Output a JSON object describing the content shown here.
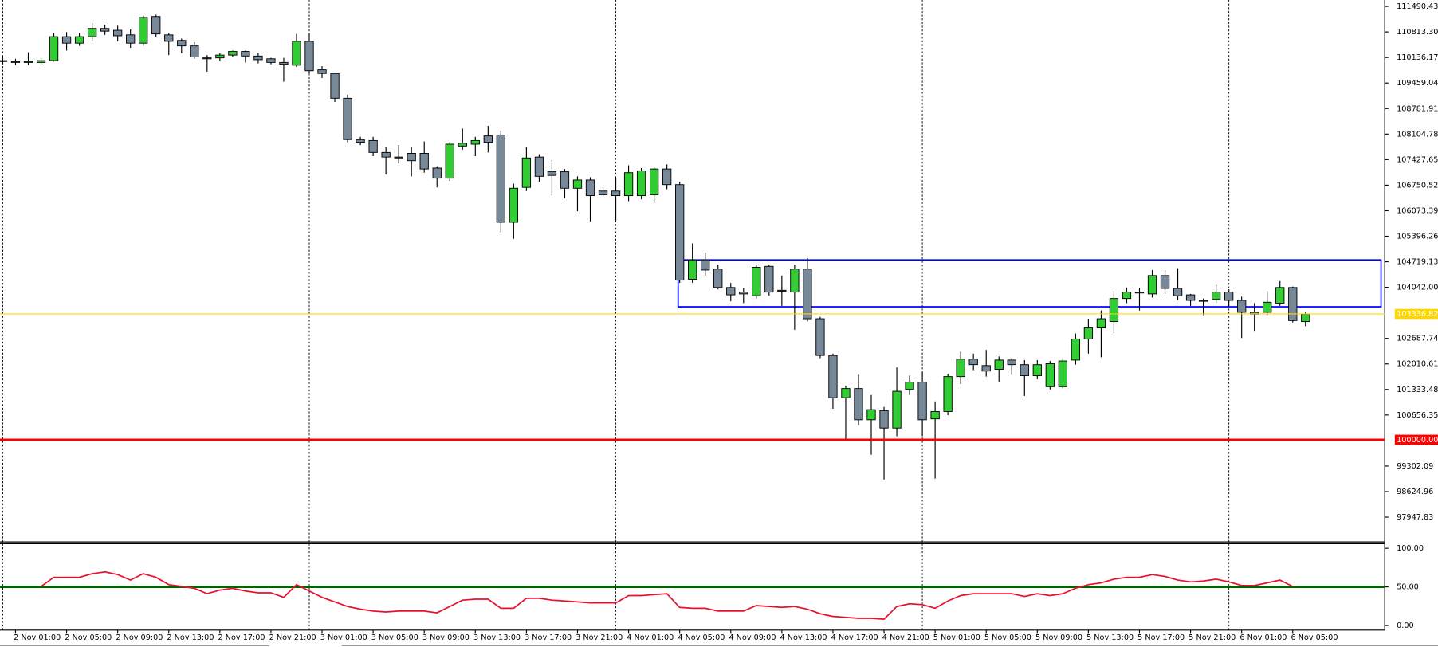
{
  "chart_data": [
    {
      "type": "candlestick",
      "categories": [
        null,
        "2 Nov 01:00",
        null,
        null,
        null,
        "2 Nov 05:00",
        null,
        null,
        null,
        "2 Nov 09:00",
        null,
        null,
        null,
        "2 Nov 13:00",
        null,
        null,
        null,
        "2 Nov 17:00",
        null,
        null,
        null,
        "2 Nov 21:00",
        null,
        null,
        null,
        "3 Nov 01:00",
        null,
        null,
        null,
        "3 Nov 05:00",
        null,
        null,
        null,
        "3 Nov 09:00",
        null,
        null,
        null,
        "3 Nov 13:00",
        null,
        null,
        null,
        "3 Nov 17:00",
        null,
        null,
        null,
        "3 Nov 21:00",
        null,
        null,
        null,
        "4 Nov 01:00",
        null,
        null,
        null,
        "4 Nov 05:00",
        null,
        null,
        null,
        "4 Nov 09:00",
        null,
        null,
        null,
        "4 Nov 13:00",
        null,
        null,
        null,
        "4 Nov 17:00",
        null,
        null,
        null,
        "4 Nov 21:00",
        null,
        null,
        null,
        "5 Nov 01:00",
        null,
        null,
        null,
        "5 Nov 05:00",
        null,
        null,
        null,
        "5 Nov 09:00",
        null,
        null,
        null,
        "5 Nov 13:00",
        null,
        null,
        null,
        "5 Nov 17:00",
        null,
        null,
        null,
        "5 Nov 21:00",
        null,
        null,
        null,
        "6 Nov 01:00",
        null,
        null,
        null,
        "6 Nov 05:00",
        null
      ],
      "open": [
        110053,
        110029,
        110005,
        110005,
        110053,
        110687,
        110516,
        110687,
        110906,
        110857,
        110735,
        110516,
        111223,
        110735,
        110589,
        110443,
        110126,
        110126,
        110200,
        110297,
        110175,
        110102,
        110005,
        109932,
        110565,
        109810,
        109712,
        109055,
        107959,
        107934,
        107618,
        107496,
        107594,
        107594,
        107204,
        106936,
        107788,
        107837,
        108056,
        108081,
        105767,
        106692,
        107496,
        107106,
        107106,
        106669,
        106887,
        106595,
        106595,
        106473,
        106473,
        106497,
        107179,
        106765,
        104256,
        104768,
        104525,
        104037,
        103915,
        103818,
        104598,
        103964,
        103915,
        104525,
        103209,
        102235,
        101114,
        101358,
        100530,
        100773,
        100311,
        101334,
        101528,
        100554,
        100749,
        101675,
        102137,
        101967,
        101869,
        102113,
        101991,
        101699,
        101407,
        101407,
        102113,
        102673,
        102966,
        103136,
        103745,
        103891,
        103867,
        104354,
        104013,
        103842,
        103696,
        103721,
        103915,
        103696,
        103380,
        103380,
        103623,
        104037,
        103136
      ],
      "high": [
        110151,
        110102,
        110273,
        110126,
        110784,
        110809,
        110784,
        111052,
        111003,
        110979,
        110882,
        111247,
        111271,
        110784,
        110638,
        110541,
        110200,
        110248,
        110321,
        110321,
        110248,
        110126,
        110126,
        110760,
        110784,
        109907,
        109737,
        109152,
        108032,
        108032,
        107764,
        107813,
        107764,
        107910,
        107252,
        107886,
        108251,
        108032,
        108324,
        108202,
        106790,
        107764,
        107569,
        107423,
        107179,
        106985,
        106960,
        106692,
        106936,
        107277,
        107204,
        107252,
        107301,
        106838,
        105207,
        104963,
        104646,
        104159,
        104013,
        104646,
        104646,
        104354,
        104646,
        104817,
        103258,
        102284,
        101431,
        101723,
        101188,
        100871,
        101918,
        101699,
        101796,
        101017,
        101748,
        102332,
        102284,
        102381,
        102210,
        102162,
        102113,
        102113,
        102089,
        102162,
        102819,
        103209,
        103428,
        103940,
        104037,
        104013,
        104500,
        104500,
        104549,
        103867,
        103745,
        104110,
        103988,
        103794,
        103623,
        103940,
        104208,
        104062,
        103380
      ],
      "low": [
        109956,
        109932,
        109932,
        109956,
        110029,
        110321,
        110443,
        110565,
        110735,
        110565,
        110394,
        110443,
        110687,
        110200,
        110248,
        110102,
        109761,
        110053,
        110151,
        110005,
        109980,
        109956,
        109493,
        109883,
        109712,
        109591,
        108957,
        107886,
        107813,
        107520,
        107033,
        107325,
        106985,
        107082,
        106692,
        106863,
        107691,
        107520,
        107618,
        105499,
        105328,
        106595,
        106838,
        106473,
        106400,
        106059,
        105791,
        106449,
        105815,
        106327,
        106376,
        106278,
        106643,
        104159,
        104159,
        104354,
        103988,
        103672,
        103623,
        103745,
        103818,
        103550,
        102917,
        103136,
        102162,
        100822,
        100019,
        100384,
        99604,
        98946,
        100092,
        101188,
        100092,
        98971,
        100652,
        101480,
        101845,
        101675,
        101528,
        101723,
        101163,
        101602,
        101334,
        101358,
        101991,
        102284,
        102186,
        102819,
        103623,
        103428,
        103769,
        103867,
        103696,
        103550,
        103306,
        103623,
        103526,
        102697,
        102868,
        103306,
        103550,
        103112,
        103014
      ],
      "close": [
        110029,
        110005,
        110029,
        110053,
        110687,
        110516,
        110687,
        110906,
        110833,
        110711,
        110516,
        111198,
        110760,
        110565,
        110443,
        110151,
        110102,
        110200,
        110297,
        110175,
        110078,
        110005,
        109956,
        110565,
        109786,
        109712,
        109055,
        107959,
        107886,
        107618,
        107496,
        107472,
        107399,
        107179,
        106936,
        107837,
        107861,
        107934,
        107886,
        105767,
        106669,
        107472,
        106985,
        107009,
        106669,
        106887,
        106473,
        106497,
        106473,
        107082,
        107131,
        107179,
        106765,
        104232,
        104768,
        104500,
        104037,
        103842,
        103867,
        104573,
        103915,
        103940,
        104525,
        103209,
        102235,
        101114,
        101358,
        100530,
        100798,
        100311,
        101285,
        101528,
        100530,
        100749,
        101675,
        102137,
        101991,
        101821,
        102113,
        101991,
        101699,
        101991,
        102016,
        102089,
        102673,
        102966,
        103209,
        103745,
        103915,
        103915,
        104354,
        104013,
        103818,
        103696,
        103672,
        103915,
        103696,
        103380,
        103331,
        103647,
        104037,
        103160,
        103331
      ],
      "bull_color": "#32cd32",
      "bear_color": "#778899",
      "ylim": [
        97291,
        111661
      ],
      "yticks": [
        111490.43,
        {
          "value": 110813.3,
          "label": "110813.30"
        },
        110136.17,
        109459.04,
        108781.91,
        108104.78,
        107427.65,
        106750.52,
        106073.39,
        105396.26,
        104719.13,
        {
          "value": 104042,
          "label": "104042.00"
        },
        102687.74,
        102010.61,
        101333.48,
        100656.35,
        99302.09,
        98624.96,
        97947.83
      ],
      "price_lines": [
        {
          "value": 100000,
          "label": "100000.00",
          "color": "#ff0000"
        },
        {
          "value": 103336.82,
          "color": "#ffd700"
        }
      ],
      "zone": {
        "top": 104768,
        "bottom": 103526,
        "color": "#0000ff"
      },
      "grid": true
    },
    {
      "type": "line",
      "ylim": [
        -5.9,
        105.9
      ],
      "yticks": [
        {
          "value": 100,
          "label": "100.00"
        },
        {
          "value": 50,
          "label": "50.00"
        },
        {
          "value": 0,
          "label": "0.00"
        }
      ],
      "level": {
        "value": 50,
        "color": "#006400"
      },
      "series": [
        {
          "color": "#e8102e",
          "values": [
            null,
            null,
            null,
            50.6,
            62.4,
            62.4,
            62.4,
            67.1,
            69.4,
            65.9,
            58.8,
            67.1,
            62.4,
            52.9,
            50.6,
            48.2,
            41.2,
            45.9,
            48.2,
            44.7,
            42.4,
            42.4,
            36.5,
            52.9,
            44.7,
            36.5,
            30.6,
            24.7,
            21.2,
            18.8,
            17.6,
            18.8,
            18.8,
            18.8,
            16.5,
            24.7,
            32.9,
            34.1,
            34.1,
            22.4,
            22.4,
            35.3,
            35.3,
            32.9,
            31.8,
            30.6,
            29.4,
            29.4,
            29.4,
            38.8,
            38.8,
            40.0,
            41.2,
            23.5,
            22.4,
            22.4,
            18.8,
            18.8,
            18.8,
            25.9,
            24.7,
            23.5,
            24.7,
            21.2,
            15.3,
            11.8,
            10.6,
            9.4,
            9.4,
            8.2,
            24.7,
            28.2,
            27.1,
            22.4,
            31.8,
            38.8,
            41.2,
            41.2,
            41.2,
            41.2,
            37.6,
            41.2,
            38.8,
            41.2,
            48.2,
            52.9,
            55.3,
            60.0,
            62.4,
            62.4,
            65.9,
            63.5,
            58.8,
            56.5,
            57.6,
            60.0,
            56.5,
            51.8,
            51.8,
            55.3,
            58.8,
            50.6,
            null
          ]
        }
      ]
    }
  ]
}
